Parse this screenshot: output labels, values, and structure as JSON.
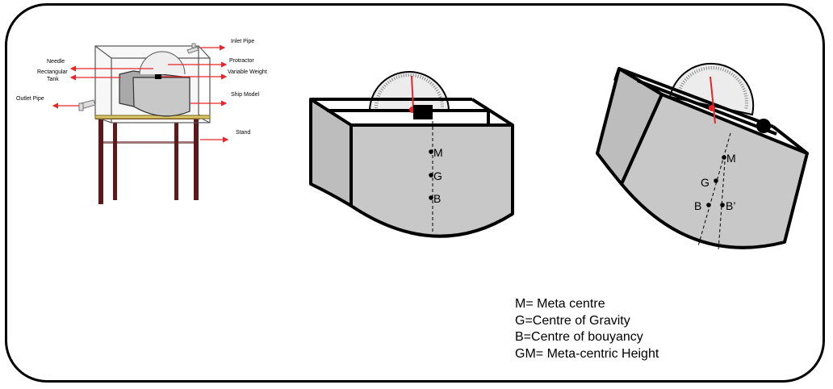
{
  "apparatus": {
    "labels": {
      "inlet_pipe": "Inlet Pipe",
      "needle": "Needle",
      "protractor": "Protractor",
      "rectangular_tank_line1": "Rectangular",
      "rectangular_tank_line2": "Tank",
      "variable_weight": "Variable Weight",
      "outlet_pipe": "Outlet Pipe",
      "ship_model": "Ship Model",
      "stand": "Stand"
    }
  },
  "upright": {
    "points": {
      "m": "M",
      "g": "G",
      "b": "B"
    }
  },
  "tilted": {
    "points": {
      "m": "M",
      "g": "G",
      "b": "B",
      "b_prime": "B’"
    }
  },
  "legend": [
    "M= Meta centre",
    "G=Centre of Gravity",
    "B=Centre of bouyancy",
    "GM= Meta-centric Height"
  ],
  "colors": {
    "arrow": "#e5262b",
    "stand": "#5c1a1a",
    "model_fill": "#c8c8c8",
    "needle": "#e5262b"
  }
}
